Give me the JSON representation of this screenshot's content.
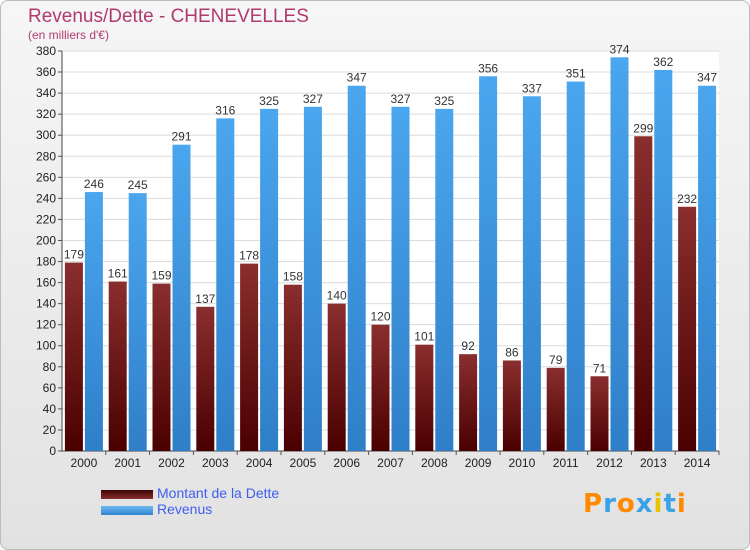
{
  "chart_data": {
    "type": "bar",
    "title": "Revenus/Dette - CHENEVELLES",
    "subtitle": "(en milliers d'€)",
    "categories": [
      "2000",
      "2001",
      "2002",
      "2003",
      "2004",
      "2005",
      "2006",
      "2007",
      "2008",
      "2009",
      "2010",
      "2011",
      "2012",
      "2013",
      "2014"
    ],
    "series": [
      {
        "name": "Montant de la Dette",
        "color": "#7a1f1f",
        "values": [
          179,
          161,
          159,
          137,
          178,
          158,
          140,
          120,
          101,
          92,
          86,
          79,
          71,
          299,
          232
        ]
      },
      {
        "name": "Revenus",
        "color": "#3d9be8",
        "values": [
          246,
          245,
          291,
          316,
          325,
          327,
          347,
          327,
          325,
          356,
          337,
          351,
          374,
          362,
          347
        ]
      }
    ],
    "ylim": [
      0,
      380
    ],
    "yticks": [
      0,
      20,
      40,
      60,
      80,
      100,
      120,
      140,
      160,
      180,
      200,
      220,
      240,
      260,
      280,
      300,
      320,
      340,
      360,
      380
    ],
    "grid": true,
    "legend_position": "bottom-left"
  },
  "logo": {
    "text": "Proxiti",
    "colors": [
      "#ff8a00",
      "#3aa2e6",
      "#ff8a00",
      "#3aa2e6",
      "#e8c400",
      "#3aa2e6",
      "#ff8a00"
    ]
  }
}
